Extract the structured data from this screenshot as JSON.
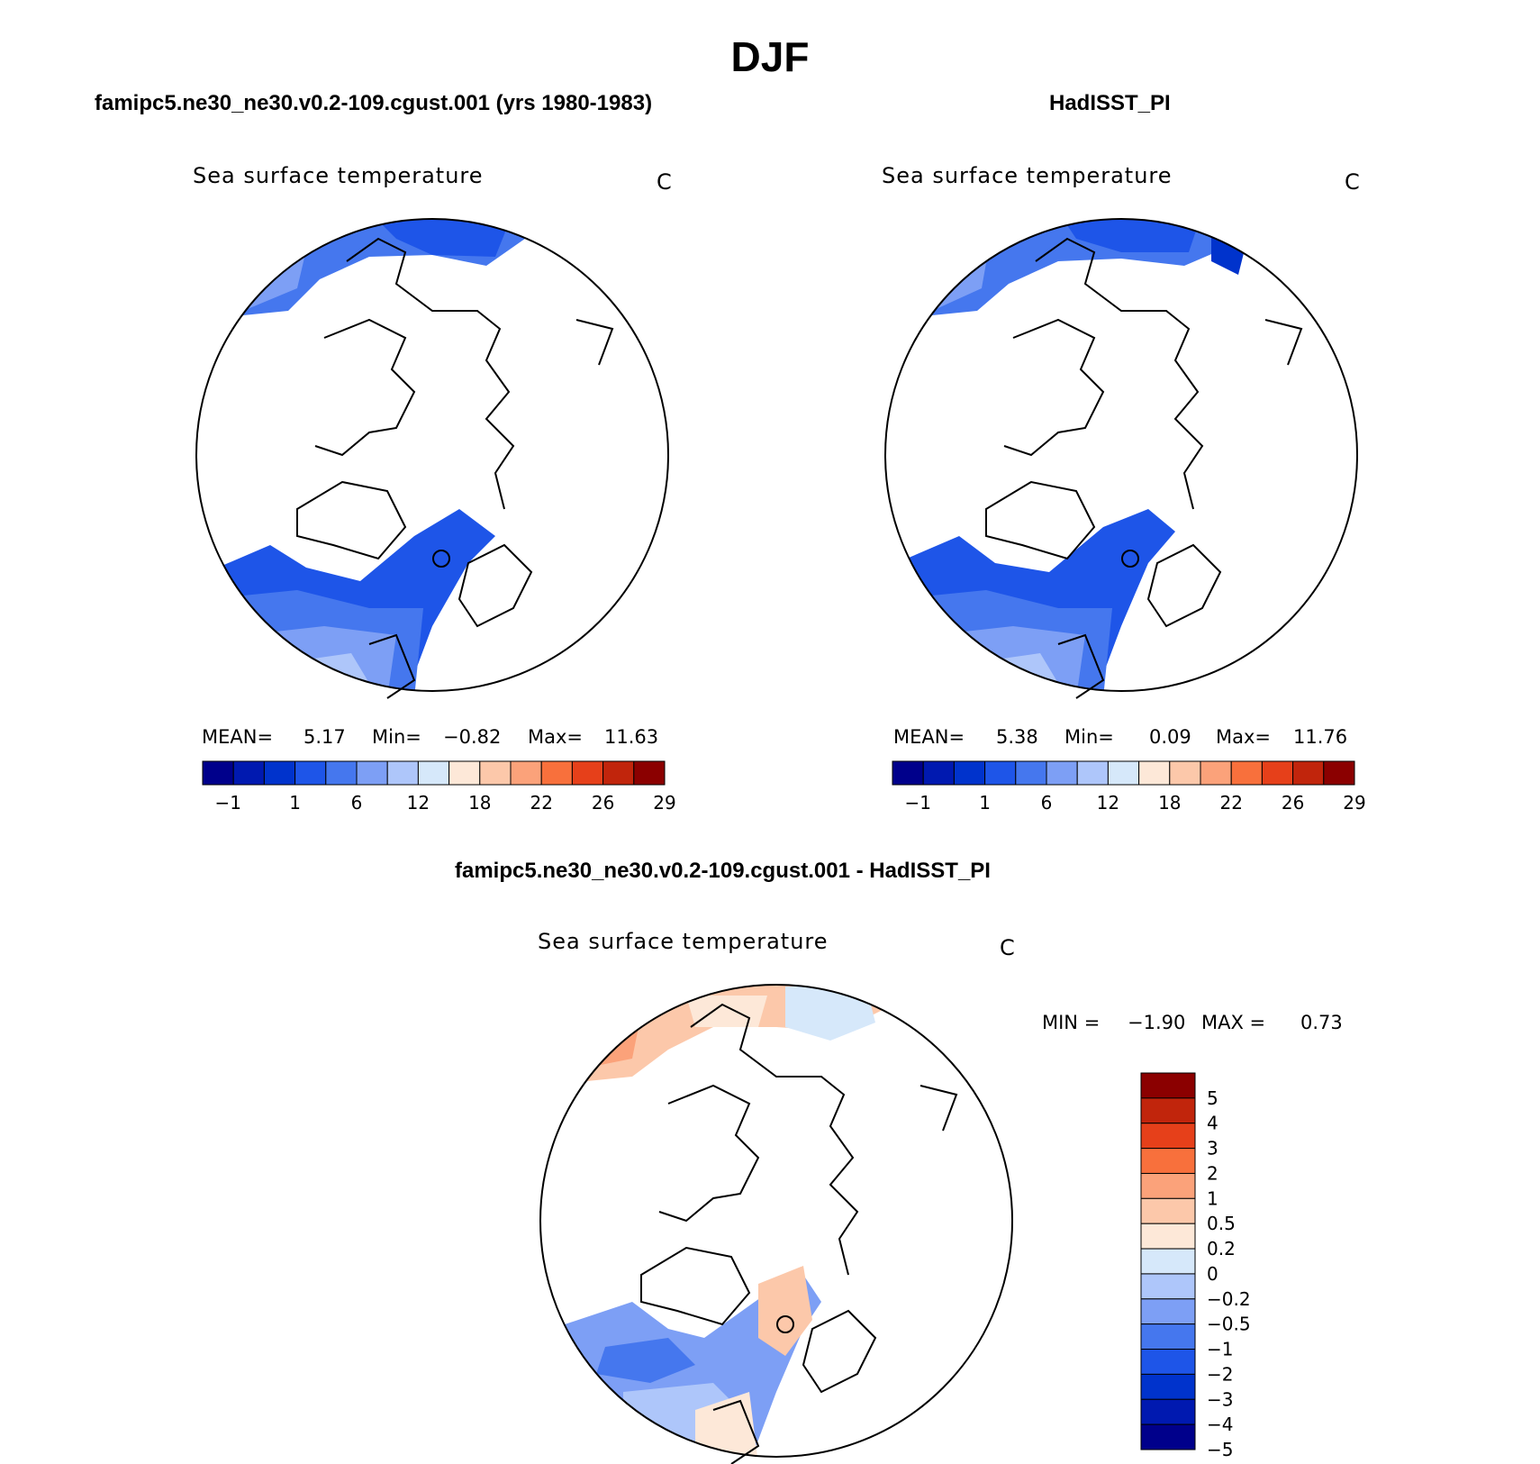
{
  "figure": {
    "title": "DJF",
    "panel1_title": "famipc5.ne30_ne30.v0.2-109.cgust.001 (yrs 1980-1983)",
    "panel2_title": "HadISST_PI",
    "panel3_title": "famipc5.ne30_ne30.v0.2-109.cgust.001 - HadISST_PI"
  },
  "panels": [
    {
      "variable": "Sea surface temperature",
      "units": "C",
      "mean_label": "MEAN=",
      "mean": "5.17",
      "min_label": "Min=",
      "min": "−0.82",
      "max_label": "Max=",
      "max": "11.63"
    },
    {
      "variable": "Sea surface temperature",
      "units": "C",
      "mean_label": "MEAN=",
      "mean": "5.38",
      "min_label": "Min=",
      "min": "0.09",
      "max_label": "Max=",
      "max": "11.76"
    },
    {
      "variable": "Sea surface temperature",
      "units": "C",
      "min_label": "MIN =",
      "min": "−1.90",
      "max_label": "MAX =",
      "max": "0.73"
    }
  ],
  "colorbar_abs": {
    "colors": [
      "#00008b",
      "#0019b0",
      "#0033cc",
      "#1e55e8",
      "#4577ee",
      "#7d9ff5",
      "#aec6fa",
      "#d6e8fa",
      "#fde8d8",
      "#fcc8aa",
      "#fba27a",
      "#f8703c",
      "#e6401a",
      "#c1250c",
      "#8b0000"
    ],
    "tick_labels": [
      "−1",
      "1",
      "6",
      "12",
      "18",
      "22",
      "26",
      "29"
    ]
  },
  "colorbar_diff": {
    "colors": [
      "#8b0000",
      "#c1250c",
      "#e6401a",
      "#f8703c",
      "#fba27a",
      "#fcc8aa",
      "#fde8d8",
      "#d6e8fa",
      "#aec6fa",
      "#7d9ff5",
      "#4577ee",
      "#1e55e8",
      "#0033cc",
      "#0019b0",
      "#00008b"
    ],
    "tick_labels": [
      "5",
      "4",
      "3",
      "2",
      "1",
      "0.5",
      "0.2",
      "0",
      "−0.2",
      "−0.5",
      "−1",
      "−2",
      "−3",
      "−4",
      "−5"
    ]
  }
}
